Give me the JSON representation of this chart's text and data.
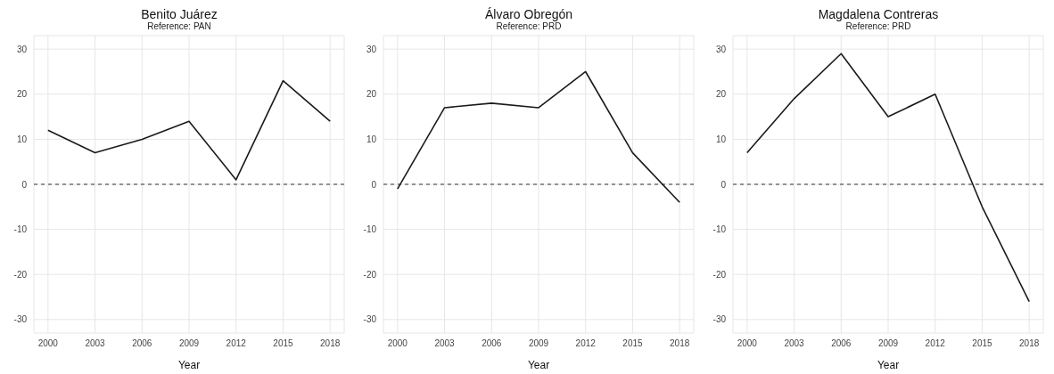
{
  "chart_data": [
    {
      "type": "line",
      "title": "Benito Juárez",
      "subtitle": "Reference: PAN",
      "xlabel": "Year",
      "x": [
        2000,
        2003,
        2006,
        2009,
        2012,
        2015,
        2018
      ],
      "series": [
        {
          "color": "#1a1a1a",
          "values": [
            12,
            7,
            10,
            14,
            1,
            23,
            14
          ]
        }
      ],
      "xlim": [
        1999.1,
        2018.9
      ],
      "xticks": [
        2000,
        2003,
        2006,
        2009,
        2012,
        2015,
        2018
      ],
      "ylim": [
        -33,
        33
      ],
      "yticks": [
        -30,
        -20,
        -10,
        0,
        10,
        20,
        30
      ],
      "grid": true,
      "legend": false,
      "marker": "none",
      "line_style": "solid",
      "ref_lines": [
        {
          "axis": "y",
          "value": 0,
          "line_style": "dashed",
          "color": "#333333"
        }
      ]
    },
    {
      "type": "line",
      "title": "Álvaro Obregón",
      "subtitle": "Reference: PRD",
      "xlabel": "Year",
      "x": [
        2000,
        2003,
        2006,
        2009,
        2012,
        2015,
        2018
      ],
      "series": [
        {
          "color": "#1a1a1a",
          "values": [
            -1,
            17,
            18,
            17,
            25,
            7,
            -4
          ]
        }
      ],
      "xlim": [
        1999.1,
        2018.9
      ],
      "xticks": [
        2000,
        2003,
        2006,
        2009,
        2012,
        2015,
        2018
      ],
      "ylim": [
        -33,
        33
      ],
      "yticks": [
        -30,
        -20,
        -10,
        0,
        10,
        20,
        30
      ],
      "grid": true,
      "legend": false,
      "marker": "none",
      "line_style": "solid",
      "ref_lines": [
        {
          "axis": "y",
          "value": 0,
          "line_style": "dashed",
          "color": "#333333"
        }
      ]
    },
    {
      "type": "line",
      "title": "Magdalena Contreras",
      "subtitle": "Reference: PRD",
      "xlabel": "Year",
      "x": [
        2000,
        2003,
        2006,
        2009,
        2012,
        2015,
        2018
      ],
      "series": [
        {
          "color": "#1a1a1a",
          "values": [
            7,
            19,
            29,
            15,
            20,
            -5,
            -26
          ]
        }
      ],
      "xlim": [
        1999.1,
        2018.9
      ],
      "xticks": [
        2000,
        2003,
        2006,
        2009,
        2012,
        2015,
        2018
      ],
      "ylim": [
        -33,
        33
      ],
      "yticks": [
        -30,
        -20,
        -10,
        0,
        10,
        20,
        30
      ],
      "grid": true,
      "legend": false,
      "marker": "none",
      "line_style": "solid",
      "ref_lines": [
        {
          "axis": "y",
          "value": 0,
          "line_style": "dashed",
          "color": "#333333"
        }
      ]
    }
  ]
}
